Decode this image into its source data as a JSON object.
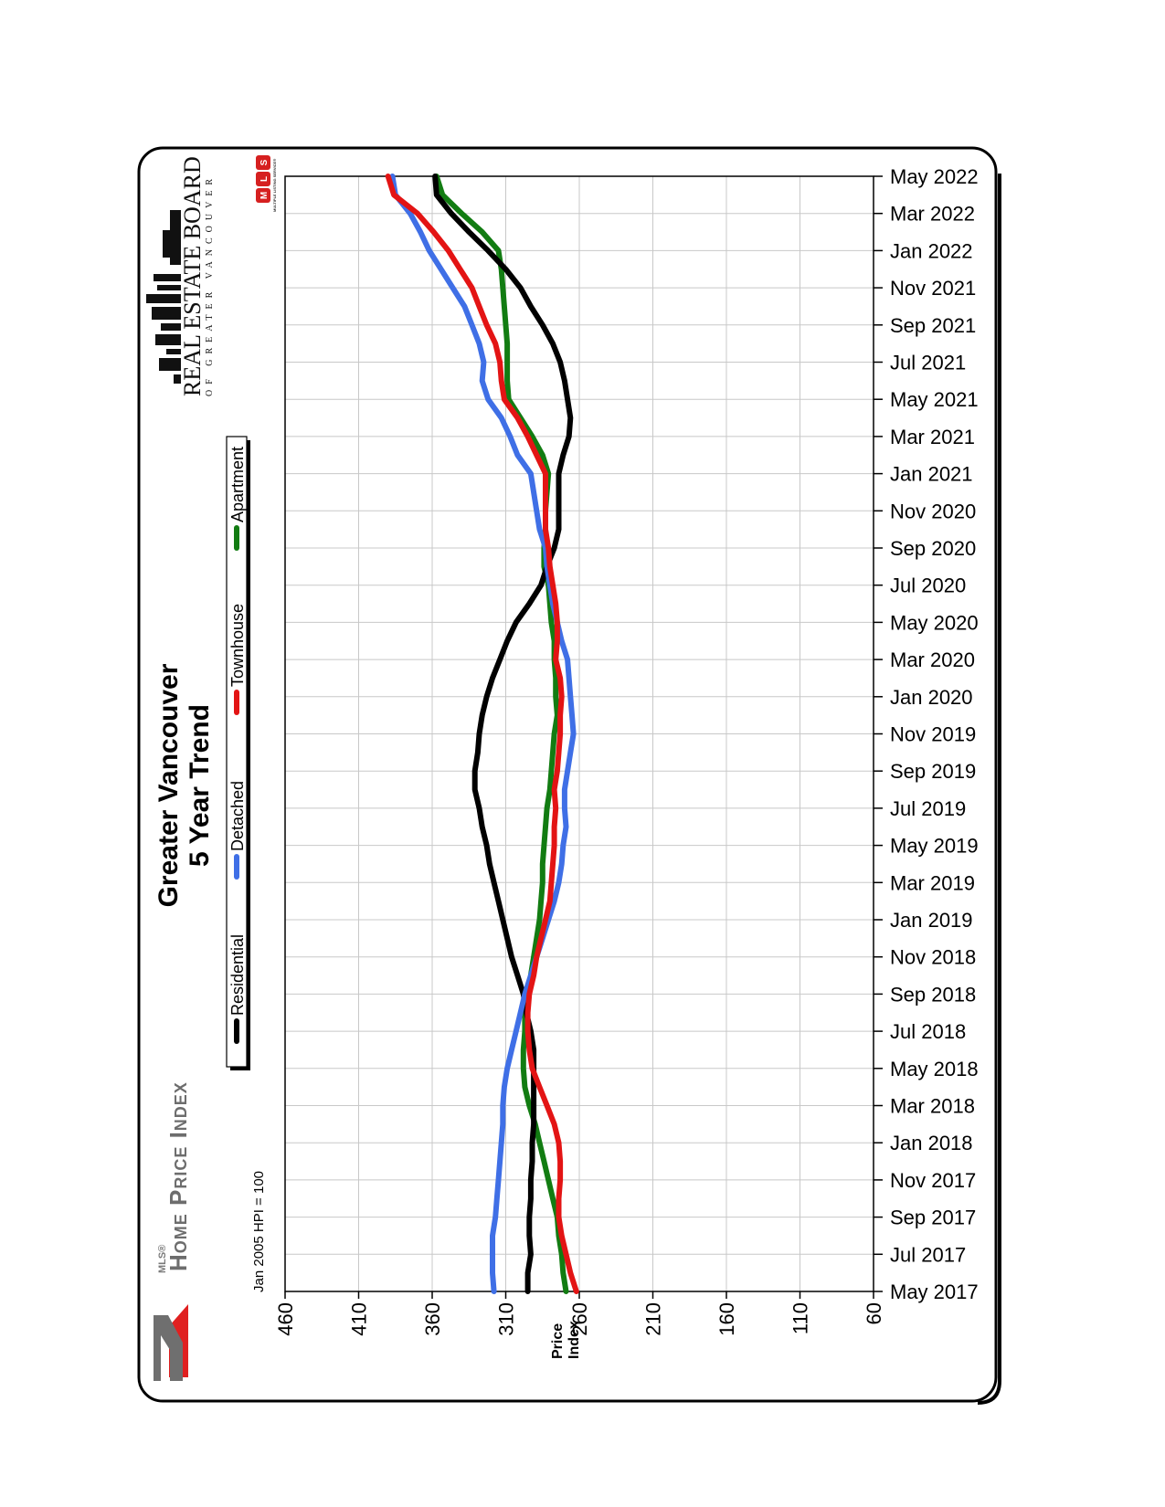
{
  "title_line1": "Greater Vancouver",
  "title_line2": "5 Year Trend",
  "hpi_note": "Jan 2005 HPI = 100",
  "logos": {
    "hpi_line1": "MLS®",
    "hpi_line2": "Home Price Index",
    "rebgv_line1": "REAL ESTATE BOARD",
    "rebgv_line2": "OF GREATER VANCOUVER",
    "mls_badge_text": "MLS",
    "mls_small": "MULTIPLE LISTING SERVICE®"
  },
  "colors": {
    "residential": "#000000",
    "detached": "#3f6fe6",
    "townhouse": "#e31414",
    "apartment": "#127c12",
    "grid": "#c8c8c8"
  },
  "chart_data": {
    "type": "line",
    "orientation": "rotated -90 degrees (time runs along the vertical axis, price index along the horizontal axis)",
    "ylabel": [
      "Price",
      "Index"
    ],
    "ylim": [
      60,
      460
    ],
    "y_ticks": [
      "60",
      "110",
      "160",
      "210",
      "260",
      "310",
      "360",
      "410",
      "460"
    ],
    "x_tick_labels": [
      "May 2017",
      "Jul 2017",
      "Sep 2017",
      "Nov 2017",
      "Jan 2018",
      "Mar 2018",
      "May 2018",
      "Jul 2018",
      "Sep 2018",
      "Nov 2018",
      "Jan 2019",
      "Mar 2019",
      "May 2019",
      "Jul 2019",
      "Sep 2019",
      "Nov 2019",
      "Jan 2020",
      "Mar 2020",
      "May 2020",
      "Jul 2020",
      "Sep 2020",
      "Nov 2020",
      "Jan 2021",
      "Mar 2021",
      "May 2021",
      "Jul 2021",
      "Sep 2021",
      "Nov 2021",
      "Jan 2022",
      "Mar 2022",
      "May 2022"
    ],
    "grid": true,
    "legend_position": "top-left",
    "series": [
      {
        "name": "Residential",
        "color_key": "residential",
        "values": [
          295,
          295,
          293,
          294,
          294,
          293,
          293,
          292,
          292,
          291,
          291,
          291,
          291,
          291,
          293,
          296,
          298,
          302,
          306,
          309,
          312,
          315,
          318,
          321,
          323,
          326,
          328,
          331,
          331,
          329,
          328,
          326,
          323,
          319,
          314,
          309,
          303,
          294,
          286,
          282,
          277,
          274,
          274,
          274,
          274,
          271,
          267,
          266,
          268,
          270,
          273,
          278,
          285,
          293,
          300,
          310,
          322,
          335,
          347,
          357,
          358
        ]
      },
      {
        "name": "Detached",
        "color_key": "detached",
        "values": [
          318,
          319,
          319,
          319,
          317,
          316,
          315,
          314,
          313,
          312,
          312,
          311,
          309,
          306,
          303,
          300,
          297,
          293,
          289,
          285,
          281,
          277,
          274,
          272,
          271,
          269,
          270,
          270,
          268,
          266,
          264,
          265,
          266,
          267,
          268,
          272,
          275,
          278,
          280,
          282,
          283,
          287,
          289,
          291,
          293,
          302,
          307,
          313,
          322,
          326,
          325,
          328,
          333,
          338,
          346,
          354,
          362,
          368,
          375,
          385,
          387
        ]
      },
      {
        "name": "Townhouse",
        "color_key": "townhouse",
        "values": [
          262,
          266,
          269,
          272,
          274,
          274,
          273,
          273,
          274,
          277,
          282,
          287,
          292,
          294,
          295,
          295,
          294,
          291,
          289,
          286,
          283,
          280,
          279,
          278,
          277,
          277,
          276,
          277,
          275,
          274,
          273,
          273,
          272,
          273,
          276,
          275,
          275,
          276,
          278,
          280,
          281,
          283,
          283,
          283,
          283,
          289,
          295,
          302,
          311,
          313,
          314,
          317,
          323,
          328,
          333,
          341,
          349,
          359,
          370,
          386,
          390
        ]
      },
      {
        "name": "Apartment",
        "color_key": "apartment",
        "values": [
          269,
          271,
          272,
          274,
          275,
          278,
          281,
          284,
          287,
          290,
          294,
          297,
          298,
          298,
          297,
          297,
          295,
          293,
          291,
          289,
          287,
          286,
          285,
          285,
          284,
          283,
          282,
          280,
          279,
          278,
          277,
          275,
          276,
          276,
          277,
          277,
          279,
          280,
          281,
          284,
          284,
          283,
          283,
          282,
          281,
          285,
          292,
          300,
          308,
          309,
          309,
          309,
          310,
          311,
          312,
          313,
          315,
          326,
          340,
          353,
          357
        ]
      }
    ]
  }
}
